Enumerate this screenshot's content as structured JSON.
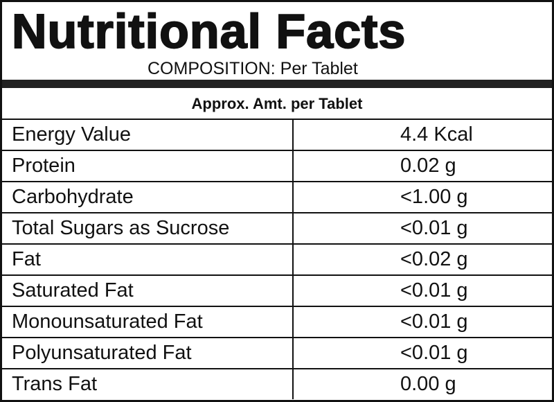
{
  "header": {
    "title": "Nutritional Facts",
    "subtitle": "COMPOSITION: Per Tablet"
  },
  "table": {
    "heading": "Approx. Amt. per Tablet",
    "rows": [
      [
        "Energy Value",
        "4.4 Kcal"
      ],
      [
        "Protein",
        "0.02 g"
      ],
      [
        "Carbohydrate",
        "<1.00 g"
      ],
      [
        "Total Sugars as Sucrose",
        "<0.01 g"
      ],
      [
        "Fat",
        "<0.02 g"
      ],
      [
        "Saturated Fat",
        "<0.01 g"
      ],
      [
        "Monounsaturated Fat",
        "<0.01 g"
      ],
      [
        "Polyunsaturated Fat",
        "<0.01 g"
      ],
      [
        "Trans Fat",
        "0.00 g"
      ]
    ]
  }
}
